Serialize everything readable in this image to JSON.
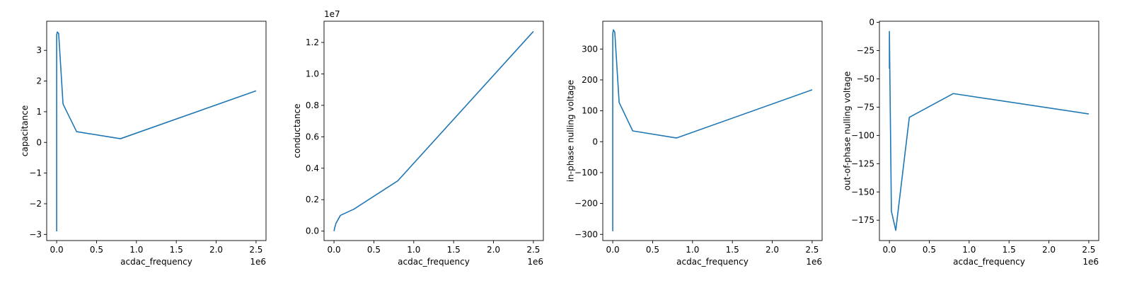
{
  "chart_data": [
    {
      "type": "line",
      "xlabel": "acdac_frequency",
      "ylabel": "capacitance",
      "x_offset_label": "1e6",
      "y_offset_label": "",
      "xlim": [
        -0.125,
        2.625
      ],
      "ylim": [
        -3.2,
        3.95
      ],
      "xticks": [
        0.0,
        0.5,
        1.0,
        1.5,
        2.0,
        2.5
      ],
      "xtick_labels": [
        "0.0",
        "0.5",
        "1.0",
        "1.5",
        "2.0",
        "2.5"
      ],
      "yticks": [
        -3,
        -2,
        -1,
        0,
        1,
        2,
        3
      ],
      "ytick_labels": [
        "−3",
        "−2",
        "−1",
        "0",
        "1",
        "2",
        "3"
      ],
      "color": "#1f77b4",
      "x": [
        0.0,
        0.0,
        0.0,
        0.0,
        0.0,
        0.008,
        0.025,
        0.08,
        0.25,
        0.8,
        2.5
      ],
      "y": [
        -2.9,
        0.0,
        2.8,
        3.3,
        3.5,
        3.6,
        3.55,
        1.25,
        0.35,
        0.12,
        1.68
      ]
    },
    {
      "type": "line",
      "xlabel": "acdac_frequency",
      "ylabel": "conductance",
      "x_offset_label": "1e6",
      "y_offset_label": "1e7",
      "xlim": [
        -0.125,
        2.625
      ],
      "ylim": [
        -0.06,
        1.335
      ],
      "xticks": [
        0.0,
        0.5,
        1.0,
        1.5,
        2.0,
        2.5
      ],
      "xtick_labels": [
        "0.0",
        "0.5",
        "1.0",
        "1.5",
        "2.0",
        "2.5"
      ],
      "yticks": [
        0.0,
        0.2,
        0.4,
        0.6,
        0.8,
        1.0,
        1.2
      ],
      "ytick_labels": [
        "0.0",
        "0.2",
        "0.4",
        "0.6",
        "0.8",
        "1.0",
        "1.2"
      ],
      "color": "#1f77b4",
      "x": [
        0.0,
        0.008,
        0.025,
        0.08,
        0.25,
        0.8,
        2.5
      ],
      "y": [
        0.0,
        0.02,
        0.05,
        0.1,
        0.14,
        0.32,
        1.27
      ]
    },
    {
      "type": "line",
      "xlabel": "acdac_frequency",
      "ylabel": "in-phase nulling voltage",
      "x_offset_label": "1e6",
      "y_offset_label": "",
      "xlim": [
        -0.125,
        2.625
      ],
      "ylim": [
        -320,
        390
      ],
      "xticks": [
        0.0,
        0.5,
        1.0,
        1.5,
        2.0,
        2.5
      ],
      "xtick_labels": [
        "0.0",
        "0.5",
        "1.0",
        "1.5",
        "2.0",
        "2.5"
      ],
      "yticks": [
        -300,
        -200,
        -100,
        0,
        100,
        200,
        300
      ],
      "ytick_labels": [
        "−300",
        "−200",
        "−100",
        "0",
        "100",
        "200",
        "300"
      ],
      "color": "#1f77b4",
      "x": [
        0.0,
        0.0,
        0.0,
        0.0,
        0.0,
        0.008,
        0.025,
        0.08,
        0.25,
        0.8,
        2.5
      ],
      "y": [
        -290,
        0,
        280,
        330,
        350,
        362,
        355,
        127,
        35,
        12,
        168
      ]
    },
    {
      "type": "line",
      "xlabel": "acdac_frequency",
      "ylabel": "out-of-phase nulling voltage",
      "x_offset_label": "1e6",
      "y_offset_label": "",
      "xlim": [
        -0.125,
        2.625
      ],
      "ylim": [
        -193,
        1
      ],
      "xticks": [
        0.0,
        0.5,
        1.0,
        1.5,
        2.0,
        2.5
      ],
      "xtick_labels": [
        "0.0",
        "0.5",
        "1.0",
        "1.5",
        "2.0",
        "2.5"
      ],
      "yticks": [
        -175,
        -150,
        -125,
        -100,
        -75,
        -50,
        -25,
        0
      ],
      "ytick_labels": [
        "−175",
        "−150",
        "−125",
        "−100",
        "−75",
        "−50",
        "−25",
        "0"
      ],
      "color": "#1f77b4",
      "x": [
        0.0,
        0.0,
        0.0,
        0.0,
        0.0,
        0.025,
        0.08,
        0.25,
        0.8,
        2.5
      ],
      "y": [
        -41,
        -30,
        -20,
        -10,
        -8,
        -167,
        -184,
        -84,
        -63,
        -81
      ]
    }
  ]
}
